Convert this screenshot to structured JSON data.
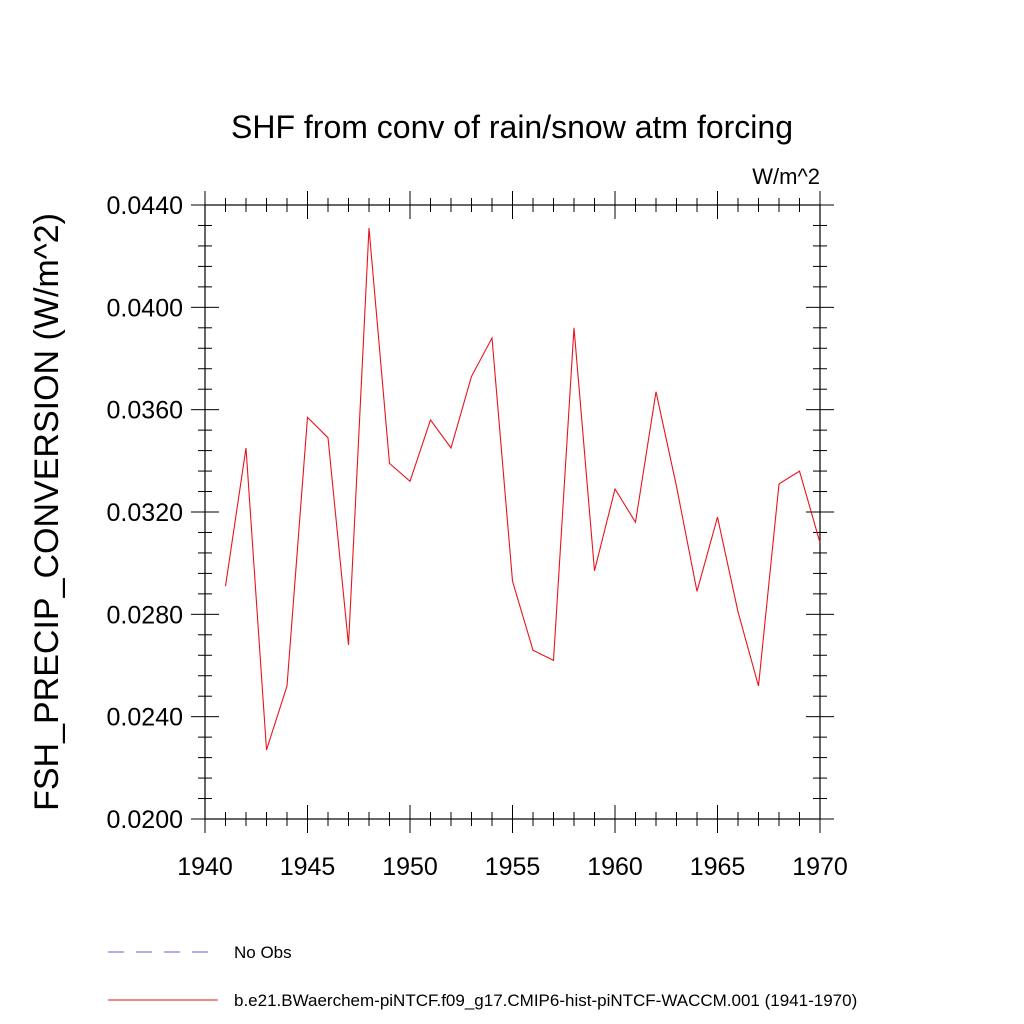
{
  "chart_data": {
    "type": "line",
    "title": "SHF from conv of rain/snow atm forcing",
    "units_label": "W/m^2",
    "ylabel": "FSH_PRECIP_CONVERSION  (W/m^2)",
    "xlabel": "",
    "xlim": [
      1940,
      1970
    ],
    "ylim": [
      0.02,
      0.044
    ],
    "x_ticks": [
      "1940",
      "1945",
      "1950",
      "1955",
      "1960",
      "1965",
      "1970"
    ],
    "y_ticks": [
      "0.0200",
      "0.0240",
      "0.0280",
      "0.0320",
      "0.0360",
      "0.0400",
      "0.0440"
    ],
    "grid": false,
    "series": [
      {
        "name": "b.e21.BWaerchem-piNTCF.f09_g17.CMIP6-hist-piNTCF-WACCM.001 (1941-1970)",
        "color": "#e8141b",
        "style": "solid",
        "x": [
          1941,
          1942,
          1943,
          1944,
          1945,
          1946,
          1947,
          1948,
          1949,
          1950,
          1951,
          1952,
          1953,
          1954,
          1955,
          1956,
          1957,
          1958,
          1959,
          1960,
          1961,
          1962,
          1963,
          1964,
          1965,
          1966,
          1967,
          1968,
          1969,
          1970
        ],
        "values": [
          0.0291,
          0.0345,
          0.0227,
          0.0252,
          0.0357,
          0.0349,
          0.0268,
          0.0431,
          0.0339,
          0.0332,
          0.0356,
          0.0345,
          0.0373,
          0.0388,
          0.0293,
          0.0266,
          0.0262,
          0.0392,
          0.0297,
          0.0329,
          0.0316,
          0.0367,
          0.033,
          0.0289,
          0.0318,
          0.0281,
          0.0252,
          0.0331,
          0.0336,
          0.0308
        ]
      }
    ],
    "legend": [
      {
        "label": "No Obs",
        "color": "#6a5acd",
        "style": "dashed"
      },
      {
        "label": "b.e21.BWaerchem-piNTCF.f09_g17.CMIP6-hist-piNTCF-WACCM.001 (1941-1970)",
        "color": "#e8141b",
        "style": "solid"
      }
    ]
  }
}
